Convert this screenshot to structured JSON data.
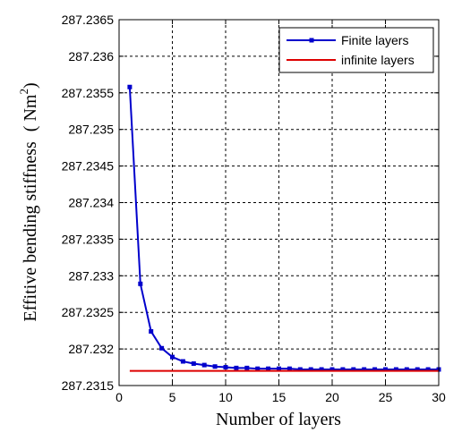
{
  "chart_data": {
    "type": "line",
    "xlabel": "Number of layers",
    "ylabel": "Effitive bending stiffness",
    "ylabel_unit": "( Nm",
    "ylabel_unit_sup": "2",
    "ylabel_unit_close": ")",
    "xlim": [
      0,
      30
    ],
    "ylim": [
      287.2315,
      287.2365
    ],
    "x_ticks": [
      0,
      5,
      10,
      15,
      20,
      25,
      30
    ],
    "x_tick_labels": [
      "0",
      "5",
      "10",
      "15",
      "20",
      "25",
      "30"
    ],
    "y_ticks": [
      287.2315,
      287.232,
      287.2325,
      287.233,
      287.2335,
      287.234,
      287.2345,
      287.235,
      287.2355,
      287.236,
      287.2365
    ],
    "y_tick_labels": [
      "287.2315",
      "287.232",
      "287.2325",
      "287.233",
      "287.2335",
      "287.234",
      "287.2345",
      "287.235",
      "287.2355",
      "287.236",
      "287.2365"
    ],
    "grid": true,
    "legend_position": "top-right",
    "series": [
      {
        "name": "Finite layers",
        "color": "#0000cc",
        "marker": "square",
        "x": [
          1,
          2,
          3,
          4,
          5,
          6,
          7,
          8,
          9,
          10,
          11,
          12,
          13,
          14,
          15,
          16,
          17,
          18,
          19,
          20,
          21,
          22,
          23,
          24,
          25,
          26,
          27,
          28,
          29,
          30
        ],
        "y": [
          287.23558,
          287.23289,
          287.23224,
          287.23201,
          287.23189,
          287.23183,
          287.2318,
          287.23178,
          287.23176,
          287.23175,
          287.23174,
          287.23174,
          287.23173,
          287.23173,
          287.23173,
          287.23173,
          287.23172,
          287.23172,
          287.23172,
          287.23172,
          287.23172,
          287.23172,
          287.23172,
          287.23172,
          287.23172,
          287.23172,
          287.23172,
          287.23172,
          287.23172,
          287.23172
        ]
      },
      {
        "name": "infinite layers",
        "color": "#dd0000",
        "marker": "none",
        "x": [
          1,
          30
        ],
        "y": [
          287.2317,
          287.2317
        ]
      }
    ]
  }
}
